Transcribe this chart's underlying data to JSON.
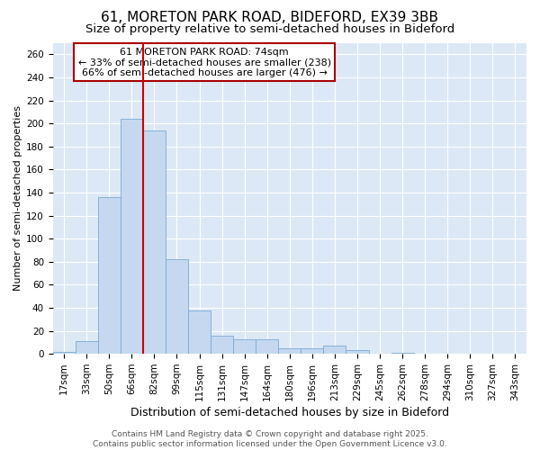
{
  "title": "61, MORETON PARK ROAD, BIDEFORD, EX39 3BB",
  "subtitle": "Size of property relative to semi-detached houses in Bideford",
  "xlabel": "Distribution of semi-detached houses by size in Bideford",
  "ylabel": "Number of semi-detached properties",
  "categories": [
    "17sqm",
    "33sqm",
    "50sqm",
    "66sqm",
    "82sqm",
    "99sqm",
    "115sqm",
    "131sqm",
    "147sqm",
    "164sqm",
    "180sqm",
    "196sqm",
    "213sqm",
    "229sqm",
    "245sqm",
    "262sqm",
    "278sqm",
    "294sqm",
    "310sqm",
    "327sqm",
    "343sqm"
  ],
  "values": [
    2,
    11,
    136,
    204,
    194,
    82,
    38,
    16,
    13,
    13,
    5,
    5,
    7,
    3,
    0,
    1,
    0,
    0,
    0,
    0,
    0
  ],
  "bar_color": "#c5d8f0",
  "bar_edge_color": "#7aaad4",
  "background_color": "#dce8f5",
  "grid_color": "#ffffff",
  "red_line_x": 3.5,
  "red_line_label": "61 MORETON PARK ROAD: 74sqm",
  "annotation_line1": "← 33% of semi-detached houses are smaller (238)",
  "annotation_line2": "66% of semi-detached houses are larger (476) →",
  "annotation_box_color": "#ffffff",
  "annotation_box_edge": "#aa0000",
  "ylim": [
    0,
    270
  ],
  "yticks": [
    0,
    20,
    40,
    60,
    80,
    100,
    120,
    140,
    160,
    180,
    200,
    220,
    240,
    260
  ],
  "footer_line1": "Contains HM Land Registry data © Crown copyright and database right 2025.",
  "footer_line2": "Contains public sector information licensed under the Open Government Licence v3.0.",
  "fig_bg": "#ffffff",
  "title_fontsize": 11,
  "subtitle_fontsize": 9.5,
  "xlabel_fontsize": 9,
  "ylabel_fontsize": 8,
  "tick_fontsize": 7.5,
  "footer_fontsize": 6.5,
  "annot_fontsize": 8
}
